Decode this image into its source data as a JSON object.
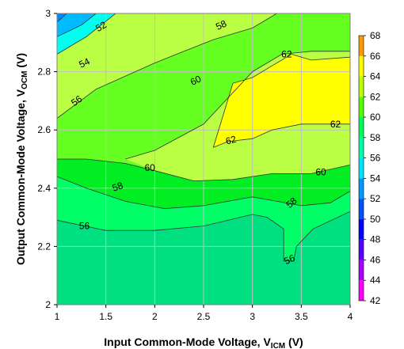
{
  "chart_data": {
    "type": "heatmap",
    "subtype": "filled-contour",
    "xlabel": {
      "main": "Input Common-Mode Voltage, V",
      "sub": "ICM",
      "unit": " (V)"
    },
    "ylabel": {
      "main": "Output Common-Mode Voltage, V",
      "sub": "OCM",
      "unit": " (V)"
    },
    "xlim": [
      1,
      4
    ],
    "ylim": [
      2,
      3
    ],
    "x_ticks": [
      "1",
      "1.5",
      "2",
      "2.5",
      "3",
      "3.5",
      "4"
    ],
    "y_ticks": [
      "2",
      "2.2",
      "2.4",
      "2.6",
      "2.8",
      "3"
    ],
    "grid": true,
    "colorbar": {
      "placement": "right",
      "levels": [
        42,
        44,
        46,
        48,
        50,
        52,
        54,
        56,
        58,
        60,
        62,
        64,
        66,
        68
      ],
      "labels": [
        "42",
        "44",
        "46",
        "48",
        "50",
        "52",
        "54",
        "56",
        "58",
        "60",
        "62",
        "64",
        "66",
        "68"
      ],
      "colors": [
        "#ff00ff",
        "#aa00ff",
        "#5500ff",
        "#0000ff",
        "#0050ff",
        "#0099ff",
        "#00e5ff",
        "#00ffaa",
        "#00ff55",
        "#55ff00",
        "#bbff00",
        "#ffff00",
        "#ff9900",
        "#ff0000"
      ]
    },
    "regions": [
      {
        "name": "lt56",
        "color": "#00e080",
        "points": [
          [
            1,
            2
          ],
          [
            4,
            2
          ],
          [
            4,
            3
          ],
          [
            1,
            3
          ]
        ]
      },
      {
        "name": "ge56",
        "color": "#00ff66",
        "points": [
          [
            1,
            2.29
          ],
          [
            1.5,
            2.255
          ],
          [
            2,
            2.255
          ],
          [
            2.5,
            2.27
          ],
          [
            3,
            2.31
          ],
          [
            3.15,
            2.3
          ],
          [
            3.32,
            2.26
          ],
          [
            3.32,
            2.15
          ],
          [
            3.42,
            2.15
          ],
          [
            3.45,
            2.2
          ],
          [
            3.62,
            2.26
          ],
          [
            4,
            2.32
          ],
          [
            4,
            3
          ],
          [
            1,
            3
          ]
        ]
      },
      {
        "name": "ge58",
        "color": "#00ee22",
        "points": [
          [
            1,
            2.44
          ],
          [
            1.3,
            2.4
          ],
          [
            1.7,
            2.355
          ],
          [
            2.1,
            2.33
          ],
          [
            2.5,
            2.34
          ],
          [
            3,
            2.37
          ],
          [
            3.5,
            2.34
          ],
          [
            3.8,
            2.35
          ],
          [
            4,
            2.39
          ],
          [
            4,
            3
          ],
          [
            1,
            3
          ]
        ]
      },
      {
        "name": "ge60",
        "color": "#66ff22",
        "points": [
          [
            1,
            2.5
          ],
          [
            1.3,
            2.5
          ],
          [
            1.7,
            2.485
          ],
          [
            2,
            2.46
          ],
          [
            2.4,
            2.425
          ],
          [
            2.8,
            2.43
          ],
          [
            3.2,
            2.45
          ],
          [
            3.6,
            2.45
          ],
          [
            4,
            2.48
          ],
          [
            4,
            3
          ],
          [
            1,
            3
          ]
        ]
      },
      {
        "name": "ge62",
        "color": "#bbff44",
        "points": [
          [
            1,
            2.64
          ],
          [
            1.4,
            2.74
          ],
          [
            2.0,
            2.83
          ],
          [
            2.3,
            2.87
          ],
          [
            2.6,
            2.91
          ],
          [
            3.0,
            2.95
          ],
          [
            3.25,
            3.0
          ],
          [
            1,
            3
          ]
        ]
      },
      {
        "name": "ge62b",
        "color": "#bbff44",
        "points": [
          [
            1.7,
            2.5
          ],
          [
            2.0,
            2.53
          ],
          [
            2.5,
            2.62
          ],
          [
            3.0,
            2.8
          ],
          [
            3.3,
            2.86
          ],
          [
            3.6,
            2.87
          ],
          [
            4,
            2.87
          ],
          [
            4,
            2.48
          ],
          [
            3.6,
            2.45
          ],
          [
            3.2,
            2.45
          ],
          [
            2.8,
            2.43
          ],
          [
            2.4,
            2.425
          ],
          [
            2,
            2.46
          ]
        ]
      },
      {
        "name": "ge64",
        "color": "#ffff00",
        "points": [
          [
            2.6,
            2.54
          ],
          [
            2.8,
            2.76
          ],
          [
            3.0,
            2.78
          ],
          [
            3.2,
            2.82
          ],
          [
            3.4,
            2.86
          ],
          [
            3.6,
            2.84
          ],
          [
            4,
            2.85
          ],
          [
            4,
            2.62
          ],
          [
            3.6,
            2.62
          ],
          [
            3.5,
            2.62
          ],
          [
            3.2,
            2.6
          ],
          [
            3.0,
            2.57
          ],
          [
            2.75,
            2.56
          ]
        ]
      },
      {
        "name": "lt54",
        "color": "#00ffee",
        "points": [
          [
            1,
            2.86
          ],
          [
            1.3,
            2.92
          ],
          [
            1.6,
            3.0
          ],
          [
            1,
            3
          ]
        ]
      },
      {
        "name": "lt52",
        "color": "#00bbff",
        "points": [
          [
            1,
            2.92
          ],
          [
            1.25,
            2.96
          ],
          [
            1.4,
            3.0
          ],
          [
            1,
            3
          ]
        ]
      },
      {
        "name": "lt50",
        "color": "#0088ff",
        "points": [
          [
            1,
            2.97
          ],
          [
            1.1,
            3.0
          ],
          [
            1,
            3
          ]
        ]
      }
    ],
    "contour_lines": [
      {
        "points": [
          [
            1,
            2.29
          ],
          [
            1.5,
            2.255
          ],
          [
            2,
            2.255
          ],
          [
            2.5,
            2.27
          ],
          [
            3,
            2.31
          ],
          [
            3.15,
            2.3
          ],
          [
            3.32,
            2.26
          ],
          [
            3.32,
            2.15
          ],
          [
            3.42,
            2.15
          ],
          [
            3.45,
            2.2
          ],
          [
            3.62,
            2.26
          ],
          [
            4,
            2.32
          ]
        ]
      },
      {
        "points": [
          [
            1,
            2.44
          ],
          [
            1.3,
            2.4
          ],
          [
            1.7,
            2.355
          ],
          [
            2.1,
            2.33
          ],
          [
            2.5,
            2.34
          ],
          [
            3,
            2.37
          ],
          [
            3.5,
            2.34
          ],
          [
            3.8,
            2.35
          ],
          [
            4,
            2.39
          ]
        ]
      },
      {
        "points": [
          [
            1,
            2.5
          ],
          [
            1.3,
            2.5
          ],
          [
            1.7,
            2.485
          ],
          [
            2,
            2.46
          ],
          [
            2.4,
            2.425
          ],
          [
            2.8,
            2.43
          ],
          [
            3.2,
            2.45
          ],
          [
            3.6,
            2.45
          ],
          [
            4,
            2.48
          ]
        ]
      },
      {
        "points": [
          [
            1.7,
            2.5
          ],
          [
            2.0,
            2.53
          ],
          [
            2.5,
            2.62
          ],
          [
            3.0,
            2.8
          ],
          [
            3.3,
            2.86
          ],
          [
            3.6,
            2.87
          ],
          [
            4,
            2.87
          ]
        ]
      },
      {
        "points": [
          [
            1,
            2.64
          ],
          [
            1.4,
            2.74
          ],
          [
            2.0,
            2.83
          ],
          [
            2.3,
            2.87
          ],
          [
            2.6,
            2.91
          ],
          [
            3.0,
            2.95
          ],
          [
            3.25,
            3.0
          ]
        ]
      },
      {
        "points": [
          [
            2.6,
            2.54
          ],
          [
            2.8,
            2.76
          ],
          [
            3.0,
            2.78
          ],
          [
            3.2,
            2.82
          ],
          [
            3.4,
            2.86
          ],
          [
            3.6,
            2.84
          ],
          [
            4,
            2.85
          ]
        ]
      },
      {
        "points": [
          [
            2.6,
            2.54
          ],
          [
            2.75,
            2.56
          ],
          [
            3.0,
            2.57
          ],
          [
            3.2,
            2.6
          ],
          [
            3.5,
            2.62
          ],
          [
            4,
            2.62
          ]
        ]
      },
      {
        "points": [
          [
            1,
            2.86
          ],
          [
            1.3,
            2.92
          ],
          [
            1.6,
            3.0
          ]
        ]
      },
      {
        "points": [
          [
            1,
            2.92
          ],
          [
            1.25,
            2.96
          ],
          [
            1.4,
            3.0
          ]
        ]
      },
      {
        "points": [
          [
            1,
            2.97
          ],
          [
            1.1,
            3.0
          ]
        ]
      }
    ],
    "contour_labels": [
      {
        "text": "52",
        "x": 1.45,
        "y": 2.955,
        "angle": -30
      },
      {
        "text": "54",
        "x": 1.28,
        "y": 2.83,
        "angle": -25
      },
      {
        "text": "56",
        "x": 1.2,
        "y": 2.7,
        "angle": -35
      },
      {
        "text": "58",
        "x": 2.68,
        "y": 2.96,
        "angle": -25
      },
      {
        "text": "60",
        "x": 2.42,
        "y": 2.77,
        "angle": -25
      },
      {
        "text": "62",
        "x": 3.35,
        "y": 2.86,
        "angle": 0
      },
      {
        "text": "62",
        "x": 2.78,
        "y": 2.565,
        "angle": -15
      },
      {
        "text": "62",
        "x": 3.85,
        "y": 2.62,
        "angle": 0
      },
      {
        "text": "60",
        "x": 1.95,
        "y": 2.47,
        "angle": 0
      },
      {
        "text": "60",
        "x": 3.7,
        "y": 2.455,
        "angle": 0
      },
      {
        "text": "58",
        "x": 1.62,
        "y": 2.405,
        "angle": -20
      },
      {
        "text": "58",
        "x": 3.4,
        "y": 2.35,
        "angle": -40
      },
      {
        "text": "56",
        "x": 1.28,
        "y": 2.27,
        "angle": 0
      },
      {
        "text": "56",
        "x": 3.38,
        "y": 2.155,
        "angle": -25
      }
    ]
  }
}
